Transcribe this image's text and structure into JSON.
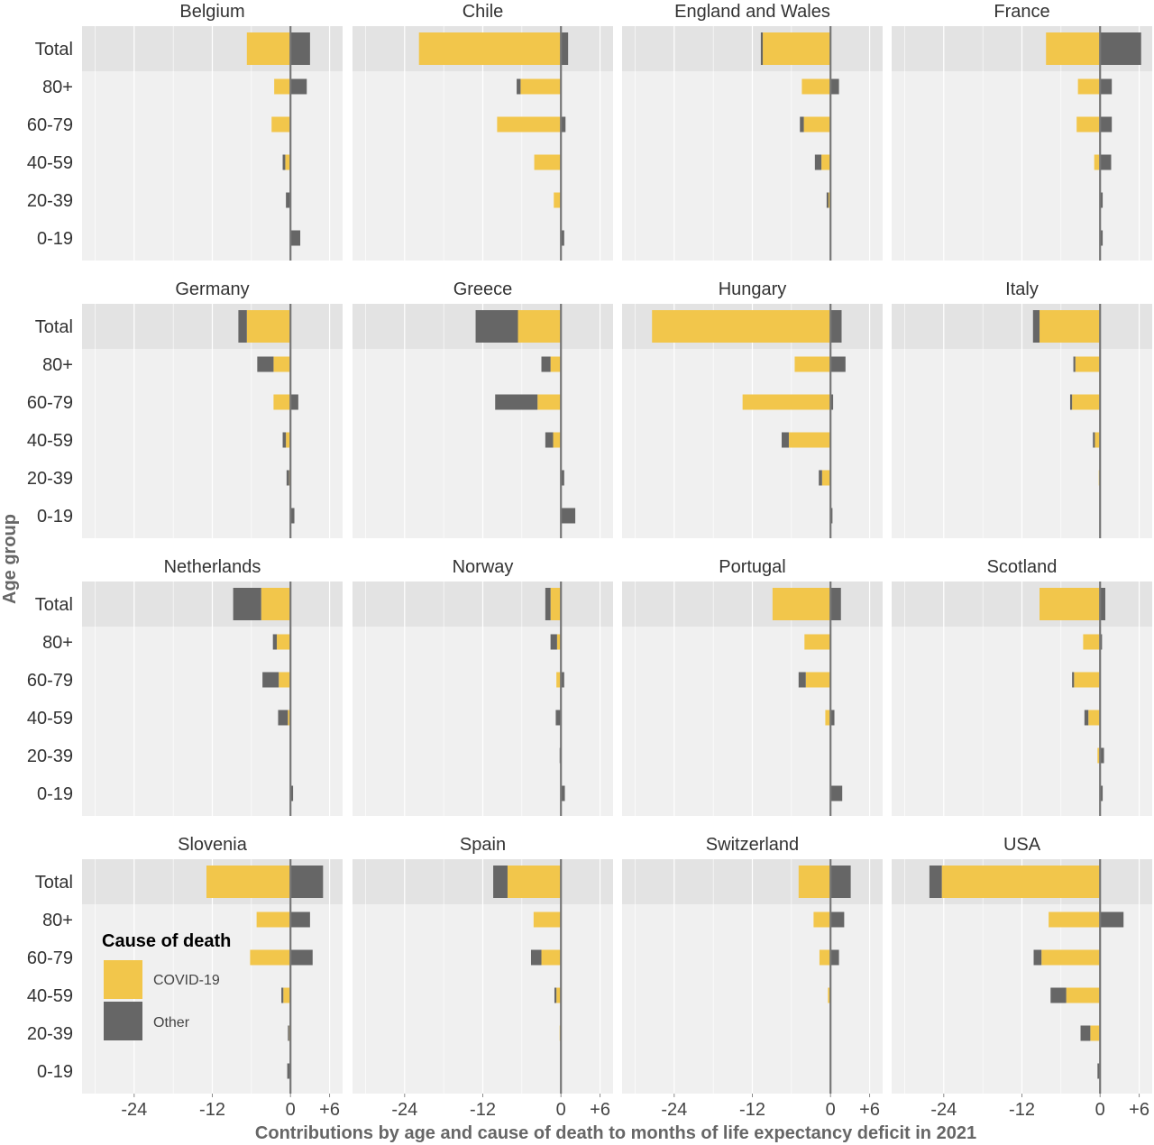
{
  "chart_data": {
    "type": "bar",
    "orientation": "horizontal",
    "stacked": true,
    "xlabel": "Contributions by age and cause of death to months of life expectancy deficit in 2021",
    "ylabel": "Age group",
    "xlim": [
      -32,
      8
    ],
    "xticks": [
      -24,
      -12,
      0,
      6
    ],
    "xtick_labels": [
      "-24",
      "-12",
      "0",
      "+6"
    ],
    "categories": [
      "Total",
      "80+",
      "60-79",
      "40-59",
      "20-39",
      "0-19"
    ],
    "legend": {
      "title": "Cause of death",
      "placement": "inside-bottom-left (Slovenia panel)",
      "entries": [
        {
          "name": "COVID-19",
          "color": "#f2c64b"
        },
        {
          "name": "Other",
          "color": "#666666"
        }
      ]
    },
    "colors": {
      "covid": "#f2c64b",
      "other": "#666666",
      "panel_bg": "#f0f0f0",
      "total_band": "#e3e3e3",
      "zero_line": "#777777"
    },
    "panels": [
      {
        "country": "Belgium",
        "covid": [
          -6.7,
          -2.5,
          -2.9,
          -0.8,
          0,
          0
        ],
        "other": [
          3.0,
          2.5,
          0,
          -0.4,
          -0.7,
          1.5
        ]
      },
      {
        "country": "Chile",
        "covid": [
          -21.8,
          -6.2,
          -9.8,
          -4.1,
          -1.1,
          0
        ],
        "other": [
          1.1,
          -0.6,
          0.7,
          0,
          0,
          0.5
        ]
      },
      {
        "country": "England and Wales",
        "covid": [
          -10.4,
          -4.4,
          -4.1,
          -1.4,
          -0.3,
          0
        ],
        "other": [
          -0.3,
          1.3,
          -0.6,
          -1.0,
          -0.3,
          0
        ]
      },
      {
        "country": "France",
        "covid": [
          -8.3,
          -3.4,
          -3.6,
          -0.9,
          0,
          0
        ],
        "other": [
          6.3,
          1.8,
          1.8,
          1.7,
          0.4,
          0.4
        ]
      },
      {
        "country": "Germany",
        "covid": [
          -6.7,
          -2.6,
          -2.6,
          -0.7,
          -0.2,
          0
        ],
        "other": [
          -1.3,
          -2.5,
          1.2,
          -0.5,
          -0.4,
          0.6
        ]
      },
      {
        "country": "Greece",
        "covid": [
          -6.6,
          -1.6,
          -3.6,
          -1.2,
          0,
          0
        ],
        "other": [
          -6.5,
          -1.4,
          -6.5,
          -1.2,
          0.5,
          2.2
        ]
      },
      {
        "country": "Hungary",
        "covid": [
          -27.4,
          -5.5,
          -13.5,
          -6.4,
          -1.3,
          0
        ],
        "other": [
          1.7,
          2.3,
          0.4,
          -1.1,
          -0.5,
          0.3
        ]
      },
      {
        "country": "Italy",
        "covid": [
          -9.3,
          -3.8,
          -4.3,
          -0.8,
          -0.2,
          0
        ],
        "other": [
          -1.0,
          -0.3,
          -0.3,
          -0.3,
          0,
          0
        ]
      },
      {
        "country": "Netherlands",
        "covid": [
          -4.5,
          -2.1,
          -1.8,
          -0.4,
          0,
          0
        ],
        "other": [
          -4.3,
          -0.6,
          -2.5,
          -1.5,
          0,
          0.4
        ]
      },
      {
        "country": "Norway",
        "covid": [
          -1.6,
          -0.6,
          -0.7,
          0,
          0,
          0
        ],
        "other": [
          -0.8,
          -1.0,
          0.5,
          -0.8,
          -0.2,
          0.6
        ]
      },
      {
        "country": "Portugal",
        "covid": [
          -8.9,
          -4.0,
          -3.8,
          -0.8,
          0,
          0
        ],
        "other": [
          1.6,
          0,
          -1.1,
          0.6,
          0,
          1.8
        ]
      },
      {
        "country": "Scotland",
        "covid": [
          -9.3,
          -2.6,
          -4.0,
          -1.8,
          -0.4,
          0
        ],
        "other": [
          0.8,
          0.3,
          -0.3,
          -0.6,
          0.6,
          0.4
        ]
      },
      {
        "country": "Slovenia",
        "covid": [
          -12.9,
          -5.2,
          -6.2,
          -1.1,
          -0.2,
          0
        ],
        "other": [
          5.0,
          3.0,
          3.4,
          -0.3,
          -0.2,
          -0.5
        ]
      },
      {
        "country": "Spain",
        "covid": [
          -8.2,
          -4.2,
          -3.0,
          -0.7,
          -0.2,
          0
        ],
        "other": [
          -2.2,
          0,
          -1.6,
          -0.3,
          0,
          0
        ]
      },
      {
        "country": "Switzerland",
        "covid": [
          -4.9,
          -2.6,
          -1.7,
          -0.4,
          0,
          0
        ],
        "other": [
          3.1,
          2.1,
          1.3,
          0,
          0,
          0
        ]
      },
      {
        "country": "USA",
        "covid": [
          -24.3,
          -7.9,
          -9.0,
          -5.2,
          -1.5,
          0
        ],
        "other": [
          -1.9,
          3.6,
          -1.2,
          -2.4,
          -1.5,
          -0.4
        ]
      }
    ]
  }
}
